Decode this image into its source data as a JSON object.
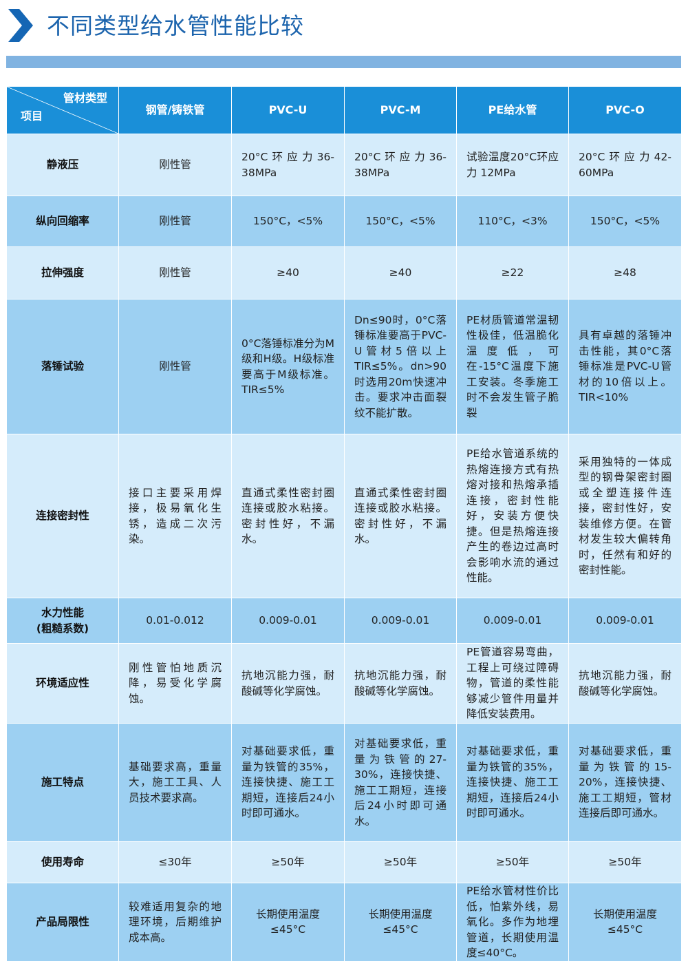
{
  "title": "不同类型给水管性能比较",
  "colors": {
    "title": "#1c64ad",
    "header": "#1a8fd8",
    "row_light": "#d5ecfb",
    "row_medium": "#9dd0f2",
    "bar": "#80b3e1"
  },
  "table": {
    "corner_top": "管材类型",
    "corner_bottom": "项目",
    "columns": [
      "钢管/铸铁管",
      "PVC-U",
      "PVC-M",
      "PE给水管",
      "PVC-O"
    ],
    "rows": [
      {
        "label": "静液压",
        "cells": [
          "刚性管",
          "20°C环应力36-38MPa",
          "20°C环应力36-38MPa",
          "试验温度20°C环应力 12MPa",
          "20°C环应力42-60MPa"
        ]
      },
      {
        "label": "纵向回缩率",
        "cells": [
          "刚性管",
          "150°C，<5%",
          "150°C，<5%",
          "110°C，<3%",
          "150°C，<5%"
        ]
      },
      {
        "label": "拉伸强度",
        "cells": [
          "刚性管",
          "≥40",
          "≥40",
          "≥22",
          "≥48"
        ]
      },
      {
        "label": "落锤试验",
        "cells": [
          "刚性管",
          "0°C落锤标准分为M级和H级。H级标准要高于M级标准。TIR≤5%",
          "Dn≤90时，0°C落锤标准要高于PVC-U管材5倍以上TIR≤5%。dn>90时选用20m快速冲击。要求冲击面裂纹不能扩散。",
          "PE材质管道常温韧性极佳，低温脆化温度低，可在-15°C温度下施工安装。冬季施工时不会发生管子脆裂",
          "具有卓越的落锤冲击性能，其0°C落锤标准是PVC-U管材的10倍以上。TIR<10%"
        ]
      },
      {
        "label": "连接密封性",
        "cells": [
          "接口主要采用焊接，极易氧化生锈，造成二次污染。",
          "直通式柔性密封圈连接或胶水粘接。密封性好，不漏水。",
          "直通式柔性密封圈连接或胶水粘接。密封性好，不漏水。",
          "PE给水管道系统的热熔连接方式有热熔对接和热熔承插连接，密封性能好，安装方便快捷。但是热熔连接产生的卷边过高时会影响水流的通过性能。",
          "采用独特的一体成型的钢骨架密封圈或全塑连接件连接，密封性好，安装维修方便。在管材发生较大偏转角时，任然有和好的密封性能。"
        ]
      },
      {
        "label": "水力性能\n(粗糙系数)",
        "cells": [
          "0.01-0.012",
          "0.009-0.01",
          "0.009-0.01",
          "0.009-0.01",
          "0.009-0.01"
        ]
      },
      {
        "label": "环境适应性",
        "cells": [
          "刚性管怕地质沉降，易受化学腐蚀。",
          "抗地沉能力强，耐酸碱等化学腐蚀。",
          "抗地沉能力强，耐酸碱等化学腐蚀。",
          "PE管道容易弯曲，工程上可绕过障碍物，管道的柔性能够减少管件用量并降低安装费用。",
          "抗地沉能力强，耐酸碱等化学腐蚀。"
        ]
      },
      {
        "label": "施工特点",
        "cells": [
          "基础要求高，重量大，施工工具、人员技术要求高。",
          "对基础要求低，重量为铁管的35%，连接快捷、施工工期短，连接后24小时即可通水。",
          "对基础要求低，重量为铁管的27-30%，连接快捷、施工工期短，连接后24小时即可通水。",
          "对基础要求低，重量为铁管的35%，连接快捷、施工工期短，连接后24小时即可通水。",
          "对基础要求低，重量为铁管的15-20%，连接快捷、施工工期短，管材连接后即可通水。"
        ]
      },
      {
        "label": "使用寿命",
        "cells": [
          "≤30年",
          "≥50年",
          "≥50年",
          "≥50年",
          "≥50年"
        ]
      },
      {
        "label": "产品局限性",
        "cells": [
          "较难适用复杂的地理环境，后期维护成本高。",
          "长期使用温度≤45°C",
          "长期使用温度≤45°C",
          "PE给水管材性价比低，怕紫外线，易氧化。多作为地埋管道，长期使用温度≤40°C。",
          "长期使用温度≤45°C"
        ]
      }
    ]
  }
}
